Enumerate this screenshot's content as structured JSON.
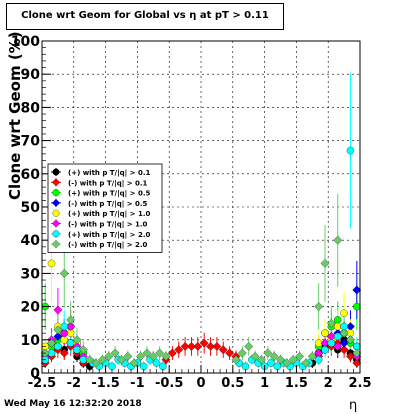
{
  "chart_data": {
    "type": "scatter",
    "title": "Clone wrt Geom for Global vs  η at pT > 0.11",
    "xlabel": "η",
    "ylabel": "Clone wrt Geom (%)",
    "xlim": [
      -2.5,
      2.5
    ],
    "ylim": [
      0,
      100
    ],
    "x_ticks": [
      "-2.5",
      "-2",
      "-1.5",
      "-1",
      "-0.5",
      "0",
      "0.5",
      "1",
      "1.5",
      "2",
      "2.5"
    ],
    "y_ticks": [
      "0",
      "10",
      "20",
      "30",
      "40",
      "50",
      "60",
      "70",
      "80",
      "90",
      "100"
    ],
    "legend_position": "left-middle",
    "timestamp": "Wed May 16 12:32:20 2018",
    "series": [
      {
        "name": "(+) with p T/|q| > 0.1",
        "color": "#000000",
        "points": [
          [
            -2.45,
            4
          ],
          [
            -2.35,
            6
          ],
          [
            -2.25,
            8
          ],
          [
            -2.15,
            7
          ],
          [
            -2.05,
            9
          ],
          [
            -1.95,
            5
          ],
          [
            -1.85,
            3
          ],
          [
            -1.75,
            2
          ],
          [
            1.75,
            3
          ],
          [
            1.85,
            6
          ],
          [
            1.95,
            8
          ],
          [
            2.05,
            9
          ],
          [
            2.15,
            7
          ],
          [
            2.25,
            10
          ],
          [
            2.35,
            6
          ],
          [
            2.45,
            4
          ]
        ]
      },
      {
        "name": "(-) with p T/|q| > 0.1",
        "color": "#ff0000",
        "points": [
          [
            -2.45,
            3
          ],
          [
            -2.35,
            5
          ],
          [
            -2.25,
            7
          ],
          [
            -2.15,
            6
          ],
          [
            -2.05,
            8
          ],
          [
            -1.95,
            6
          ],
          [
            -1.85,
            3
          ],
          [
            -0.55,
            4
          ],
          [
            -0.45,
            6
          ],
          [
            -0.35,
            7
          ],
          [
            -0.25,
            8
          ],
          [
            -0.15,
            8
          ],
          [
            -0.05,
            8
          ],
          [
            0.05,
            9
          ],
          [
            0.15,
            8
          ],
          [
            0.25,
            8
          ],
          [
            0.35,
            7
          ],
          [
            0.45,
            6
          ],
          [
            0.55,
            5
          ],
          [
            1.85,
            5
          ],
          [
            1.95,
            7
          ],
          [
            2.05,
            8
          ],
          [
            2.15,
            9
          ],
          [
            2.25,
            7
          ],
          [
            2.35,
            5
          ],
          [
            2.45,
            3
          ]
        ]
      },
      {
        "name": "(+) with p T/|q| > 0.5",
        "color": "#00ff00",
        "points": [
          [
            -2.45,
            20
          ],
          [
            -2.35,
            8
          ],
          [
            -2.25,
            10
          ],
          [
            -2.15,
            12
          ],
          [
            -2.05,
            14
          ],
          [
            -1.95,
            9
          ],
          [
            -1.85,
            6
          ],
          [
            1.85,
            8
          ],
          [
            1.95,
            12
          ],
          [
            2.05,
            14
          ],
          [
            2.15,
            16
          ],
          [
            2.25,
            12
          ],
          [
            2.35,
            9
          ],
          [
            2.45,
            20
          ]
        ]
      },
      {
        "name": "(-) with p T/|q| > 0.5",
        "color": "#0000ff",
        "points": [
          [
            -2.45,
            6
          ],
          [
            -2.35,
            9
          ],
          [
            -2.25,
            11
          ],
          [
            -2.15,
            12
          ],
          [
            -2.05,
            9
          ],
          [
            -1.95,
            7
          ],
          [
            1.85,
            6
          ],
          [
            1.95,
            9
          ],
          [
            2.05,
            11
          ],
          [
            2.15,
            12
          ],
          [
            2.25,
            9
          ],
          [
            2.35,
            14
          ],
          [
            2.45,
            25
          ]
        ]
      },
      {
        "name": "(+) with p T/|q| > 1.0",
        "color": "#ffff00",
        "points": [
          [
            -2.45,
            8
          ],
          [
            -2.35,
            33
          ],
          [
            -2.25,
            14
          ],
          [
            -2.15,
            10
          ],
          [
            -2.05,
            12
          ],
          [
            -1.95,
            9
          ],
          [
            1.85,
            9
          ],
          [
            1.95,
            12
          ],
          [
            2.05,
            10
          ],
          [
            2.15,
            14
          ],
          [
            2.25,
            18
          ],
          [
            2.35,
            12
          ],
          [
            2.45,
            8
          ]
        ]
      },
      {
        "name": "(-) with p T/|q| > 1.0",
        "color": "#ff00ff",
        "points": [
          [
            -2.45,
            5
          ],
          [
            -2.35,
            10
          ],
          [
            -2.25,
            19
          ],
          [
            -2.15,
            12
          ],
          [
            -2.05,
            14
          ],
          [
            -1.95,
            8
          ],
          [
            -1.85,
            5
          ],
          [
            1.85,
            6
          ],
          [
            1.95,
            9
          ],
          [
            2.05,
            11
          ],
          [
            2.15,
            8
          ],
          [
            2.25,
            14
          ],
          [
            2.35,
            10
          ],
          [
            2.45,
            5
          ]
        ]
      },
      {
        "name": "(+) with p T/|q| > 2.0",
        "color": "#00ffff",
        "points": [
          [
            -2.45,
            4
          ],
          [
            -2.35,
            6
          ],
          [
            -2.25,
            8
          ],
          [
            -2.15,
            14
          ],
          [
            -2.05,
            9
          ],
          [
            -1.95,
            7
          ],
          [
            -1.85,
            4
          ],
          [
            -1.7,
            3
          ],
          [
            -1.6,
            2
          ],
          [
            -1.5,
            3
          ],
          [
            -1.4,
            2
          ],
          [
            -1.3,
            4
          ],
          [
            -1.2,
            3
          ],
          [
            -1.1,
            2
          ],
          [
            -1.0,
            3
          ],
          [
            -0.9,
            2
          ],
          [
            -0.8,
            4
          ],
          [
            -0.7,
            3
          ],
          [
            -0.6,
            2
          ],
          [
            0.6,
            3
          ],
          [
            0.7,
            2
          ],
          [
            0.8,
            4
          ],
          [
            0.9,
            3
          ],
          [
            1.0,
            2
          ],
          [
            1.1,
            3
          ],
          [
            1.2,
            2
          ],
          [
            1.3,
            3
          ],
          [
            1.4,
            2
          ],
          [
            1.5,
            3
          ],
          [
            1.6,
            2
          ],
          [
            1.7,
            3
          ],
          [
            1.85,
            4
          ],
          [
            1.95,
            7
          ],
          [
            2.05,
            9
          ],
          [
            2.15,
            11
          ],
          [
            2.25,
            14
          ],
          [
            2.35,
            67
          ],
          [
            2.45,
            8
          ]
        ]
      },
      {
        "name": "(-) with p T/|q| > 2.0",
        "color": "#66cc66",
        "points": [
          [
            -2.45,
            6
          ],
          [
            -2.35,
            9
          ],
          [
            -2.25,
            13
          ],
          [
            -2.15,
            30
          ],
          [
            -2.05,
            16
          ],
          [
            -1.95,
            10
          ],
          [
            -1.85,
            7
          ],
          [
            -1.75,
            4
          ],
          [
            -1.65,
            3
          ],
          [
            -1.55,
            4
          ],
          [
            -1.45,
            5
          ],
          [
            -1.35,
            6
          ],
          [
            -1.25,
            4
          ],
          [
            -1.15,
            5
          ],
          [
            -1.05,
            3
          ],
          [
            -0.95,
            5
          ],
          [
            -0.85,
            6
          ],
          [
            -0.75,
            5
          ],
          [
            -0.65,
            6
          ],
          [
            -0.55,
            5
          ],
          [
            0.55,
            4
          ],
          [
            0.65,
            6
          ],
          [
            0.75,
            8
          ],
          [
            0.85,
            5
          ],
          [
            0.95,
            4
          ],
          [
            1.05,
            6
          ],
          [
            1.15,
            5
          ],
          [
            1.25,
            4
          ],
          [
            1.35,
            3
          ],
          [
            1.45,
            4
          ],
          [
            1.55,
            5
          ],
          [
            1.65,
            3
          ],
          [
            1.75,
            5
          ],
          [
            1.85,
            20
          ],
          [
            1.95,
            33
          ],
          [
            2.05,
            15
          ],
          [
            2.15,
            40
          ],
          [
            2.25,
            12
          ],
          [
            2.35,
            10
          ],
          [
            2.45,
            6
          ]
        ]
      }
    ]
  }
}
